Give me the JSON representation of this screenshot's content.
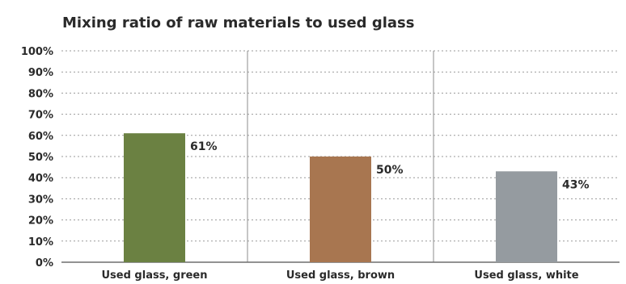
{
  "chart_data": {
    "type": "bar",
    "title": "Mixing ratio of raw materials to used glass",
    "categories": [
      "Used glass, green",
      "Used glass, brown",
      "Used glass, white"
    ],
    "values": [
      61,
      50,
      43
    ],
    "value_labels": [
      "61%",
      "50%",
      "43%"
    ],
    "ylim": [
      0,
      100
    ],
    "yticks": [
      0,
      10,
      20,
      30,
      40,
      50,
      60,
      70,
      80,
      90,
      100
    ],
    "ytick_labels": [
      "0%",
      "10%",
      "20%",
      "30%",
      "40%",
      "50%",
      "60%",
      "70%",
      "80%",
      "90%",
      "100%"
    ],
    "colors": [
      "#6b8142",
      "#a87650",
      "#959ba0"
    ],
    "grid": true,
    "legend": "none"
  }
}
